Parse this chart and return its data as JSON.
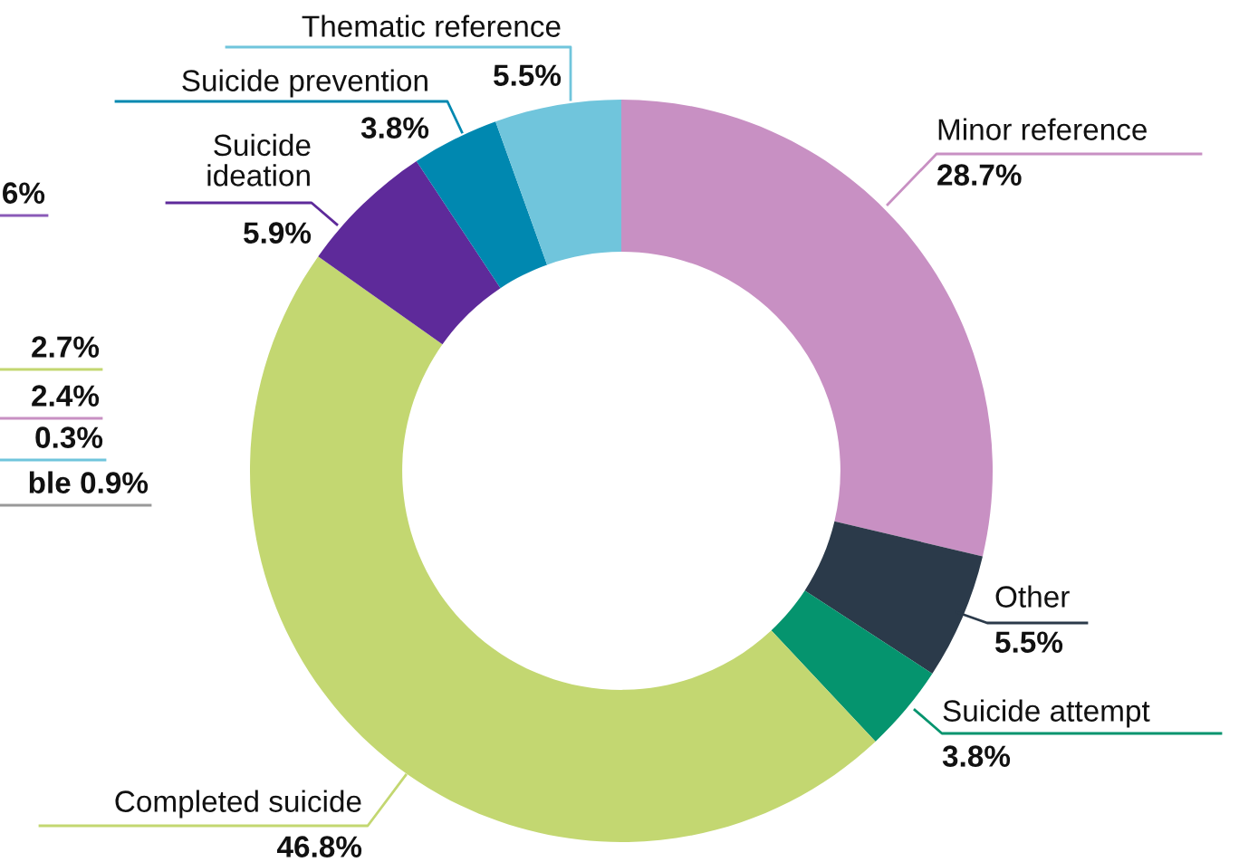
{
  "chart_data": {
    "type": "donut",
    "categories": [
      "Minor reference",
      "Other",
      "Suicide attempt",
      "Completed suicide",
      "Suicide ideation",
      "Suicide prevention",
      "Thematic reference"
    ],
    "values": [
      28.7,
      5.5,
      3.8,
      46.8,
      5.9,
      3.8,
      5.5
    ],
    "colors": [
      "#c890c3",
      "#2b3a4a",
      "#05946e",
      "#c3d771",
      "#5e2a9a",
      "#0088b0",
      "#70c5dc"
    ],
    "value_labels": [
      "28.7%",
      "5.5%",
      "3.8%",
      "46.8%",
      "5.9%",
      "3.8%",
      "5.5%"
    ],
    "annotations": [
      "6%",
      "2.7%",
      "2.4%",
      "0.3%",
      "ble 0.9%"
    ]
  }
}
